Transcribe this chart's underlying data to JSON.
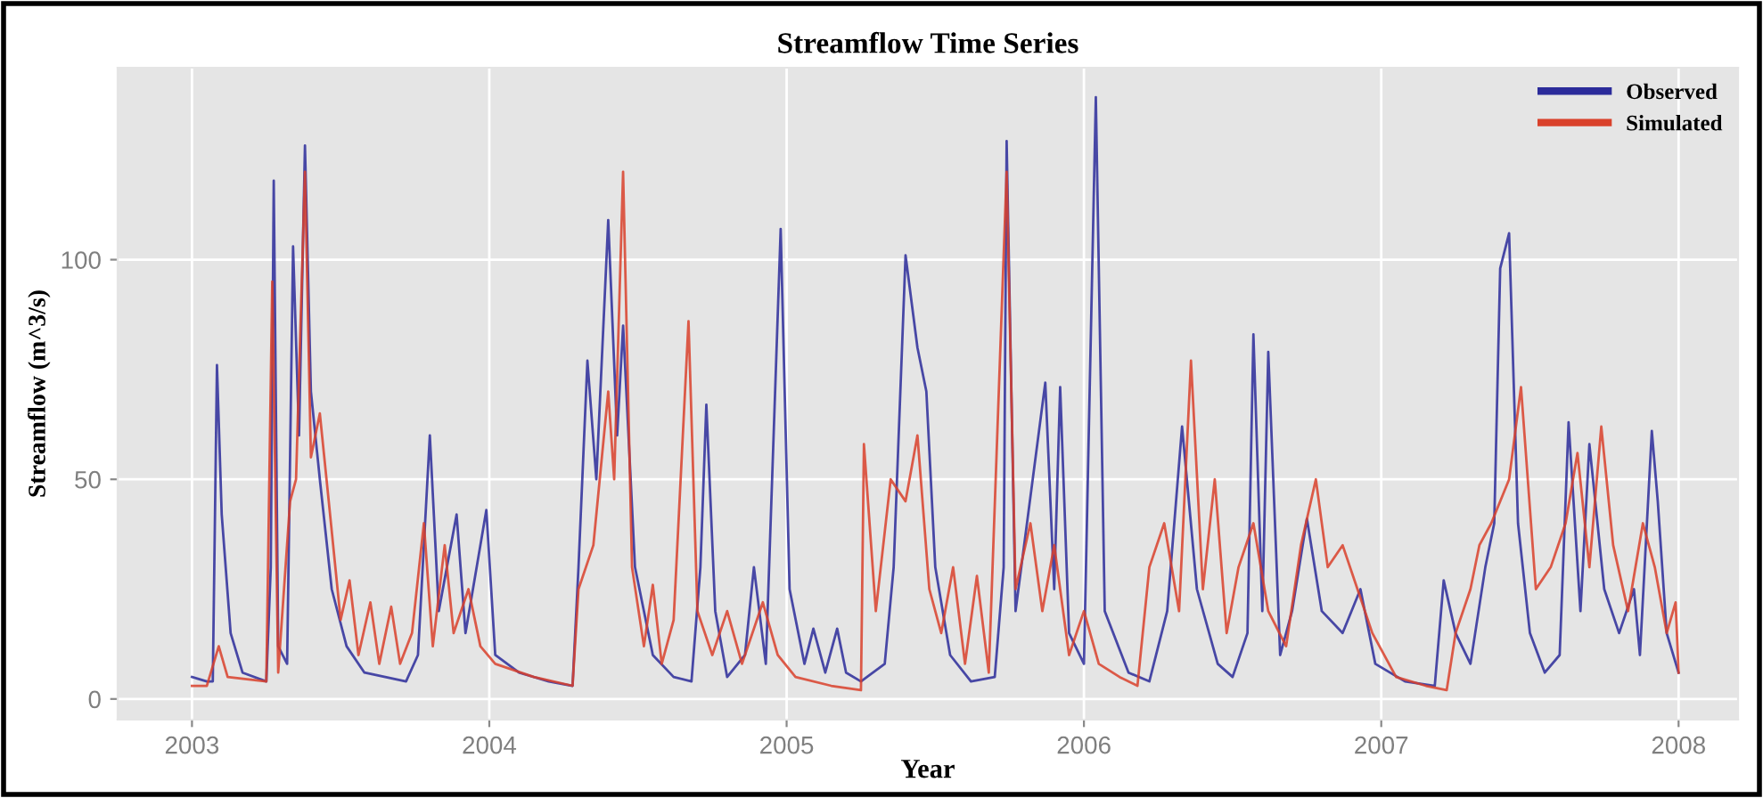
{
  "chart_data": {
    "type": "line",
    "title": "Streamflow Time Series",
    "xlabel": "Year",
    "ylabel": "Streamflow (m^3/s)",
    "xlim": [
      2002.75,
      2008.2
    ],
    "xticks": [
      2003,
      2004,
      2005,
      2006,
      2007,
      2008
    ],
    "ylim": [
      -4.7,
      143.7
    ],
    "yticks": [
      0,
      50,
      100
    ],
    "grid": true,
    "legend": "top right",
    "marker": "none",
    "line_style": "solid",
    "series": [
      {
        "name": "Observed",
        "color": "#2b2b9a",
        "x": [
          2003.0,
          2003.05,
          2003.07,
          2003.084,
          2003.1,
          2003.13,
          2003.17,
          2003.25,
          2003.265,
          2003.275,
          2003.29,
          2003.32,
          2003.34,
          2003.36,
          2003.38,
          2003.4,
          2003.43,
          2003.47,
          2003.52,
          2003.58,
          2003.65,
          2003.72,
          2003.76,
          2003.8,
          2003.83,
          2003.89,
          2003.92,
          2003.99,
          2004.02,
          2004.1,
          2004.2,
          2004.28,
          2004.3,
          2004.33,
          2004.36,
          2004.4,
          2004.43,
          2004.45,
          2004.49,
          2004.55,
          2004.62,
          2004.68,
          2004.71,
          2004.73,
          2004.76,
          2004.8,
          2004.86,
          2004.89,
          2004.93,
          2004.98,
          2005.01,
          2005.06,
          2005.09,
          2005.13,
          2005.17,
          2005.2,
          2005.25,
          2005.33,
          2005.36,
          2005.4,
          2005.44,
          2005.47,
          2005.5,
          2005.55,
          2005.62,
          2005.7,
          2005.73,
          2005.74,
          2005.77,
          2005.87,
          2005.9,
          2005.92,
          2005.95,
          2006.0,
          2006.04,
          2006.07,
          2006.15,
          2006.22,
          2006.28,
          2006.33,
          2006.38,
          2006.45,
          2006.5,
          2006.55,
          2006.57,
          2006.6,
          2006.62,
          2006.66,
          2006.7,
          2006.75,
          2006.8,
          2006.87,
          2006.93,
          2006.98,
          2007.08,
          2007.18,
          2007.21,
          2007.25,
          2007.3,
          2007.35,
          2007.38,
          2007.4,
          2007.43,
          2007.46,
          2007.5,
          2007.55,
          2007.6,
          2007.63,
          2007.67,
          2007.7,
          2007.75,
          2007.8,
          2007.85,
          2007.87,
          2007.91,
          2007.93,
          2007.96,
          2008.0
        ],
        "values": [
          5,
          4,
          4,
          76,
          42,
          15,
          6,
          4,
          30,
          118,
          12,
          8,
          103,
          60,
          126,
          70,
          50,
          25,
          12,
          6,
          5,
          4,
          10,
          60,
          20,
          42,
          15,
          43,
          10,
          6,
          4,
          3,
          30,
          77,
          50,
          109,
          60,
          85,
          30,
          10,
          5,
          4,
          30,
          67,
          20,
          5,
          10,
          30,
          8,
          107,
          25,
          8,
          16,
          6,
          16,
          6,
          4,
          8,
          30,
          101,
          80,
          70,
          30,
          10,
          4,
          5,
          30,
          127,
          20,
          72,
          25,
          71,
          15,
          8,
          137,
          20,
          6,
          4,
          20,
          62,
          25,
          8,
          5,
          15,
          83,
          20,
          79,
          10,
          20,
          41,
          20,
          15,
          25,
          8,
          4,
          3,
          27,
          15,
          8,
          30,
          40,
          98,
          106,
          40,
          15,
          6,
          10,
          63,
          20,
          58,
          25,
          15,
          25,
          10,
          61,
          45,
          15,
          6
        ]
      },
      {
        "name": "Simulated",
        "color": "#d9412b",
        "x": [
          2003.0,
          2003.05,
          2003.09,
          2003.12,
          2003.25,
          2003.27,
          2003.29,
          2003.33,
          2003.35,
          2003.38,
          2003.4,
          2003.43,
          2003.46,
          2003.5,
          2003.53,
          2003.56,
          2003.6,
          2003.63,
          2003.67,
          2003.7,
          2003.74,
          2003.78,
          2003.81,
          2003.85,
          2003.88,
          2003.93,
          2003.97,
          2004.02,
          2004.15,
          2004.28,
          2004.3,
          2004.35,
          2004.4,
          2004.42,
          2004.45,
          2004.48,
          2004.52,
          2004.55,
          2004.58,
          2004.62,
          2004.67,
          2004.7,
          2004.75,
          2004.8,
          2004.85,
          2004.92,
          2004.97,
          2005.03,
          2005.15,
          2005.25,
          2005.26,
          2005.3,
          2005.35,
          2005.4,
          2005.44,
          2005.48,
          2005.52,
          2005.56,
          2005.6,
          2005.64,
          2005.68,
          2005.74,
          2005.77,
          2005.82,
          2005.86,
          2005.9,
          2005.95,
          2006.0,
          2006.05,
          2006.12,
          2006.18,
          2006.22,
          2006.27,
          2006.32,
          2006.36,
          2006.4,
          2006.44,
          2006.48,
          2006.52,
          2006.57,
          2006.62,
          2006.68,
          2006.73,
          2006.78,
          2006.82,
          2006.87,
          2006.92,
          2006.97,
          2007.05,
          2007.15,
          2007.22,
          2007.25,
          2007.3,
          2007.33,
          2007.37,
          2007.43,
          2007.47,
          2007.52,
          2007.57,
          2007.62,
          2007.66,
          2007.7,
          2007.74,
          2007.78,
          2007.83,
          2007.88,
          2007.92,
          2007.96,
          2007.99,
          2008.0
        ],
        "values": [
          3,
          3,
          12,
          5,
          4,
          95,
          6,
          45,
          50,
          120,
          55,
          65,
          45,
          18,
          27,
          10,
          22,
          8,
          21,
          8,
          15,
          40,
          12,
          35,
          15,
          25,
          12,
          8,
          5,
          3,
          25,
          35,
          70,
          50,
          120,
          30,
          12,
          26,
          8,
          18,
          86,
          20,
          10,
          20,
          8,
          22,
          10,
          5,
          3,
          2,
          58,
          20,
          50,
          45,
          60,
          25,
          15,
          30,
          8,
          28,
          6,
          120,
          25,
          40,
          20,
          35,
          10,
          20,
          8,
          5,
          3,
          30,
          40,
          20,
          77,
          25,
          50,
          15,
          30,
          40,
          20,
          12,
          35,
          50,
          30,
          35,
          25,
          15,
          5,
          3,
          2,
          15,
          25,
          35,
          40,
          50,
          71,
          25,
          30,
          40,
          56,
          30,
          62,
          35,
          20,
          40,
          30,
          15,
          22,
          6
        ]
      }
    ]
  }
}
